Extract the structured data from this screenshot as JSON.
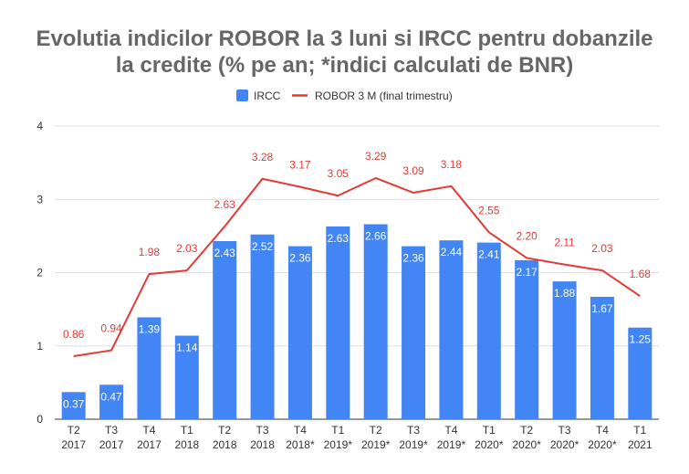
{
  "chart_data": {
    "type": "bar",
    "title_line1": "Evolutia indicilor ROBOR la 3 luni si IRCC pentru dobanzile",
    "title_line2": "la credite (% pe an; *indici calculati de BNR)",
    "categories": [
      [
        "T2",
        "2017"
      ],
      [
        "T3",
        "2017"
      ],
      [
        "T4",
        "2017"
      ],
      [
        "T1",
        "2018"
      ],
      [
        "T2",
        "2018"
      ],
      [
        "T3",
        "2018"
      ],
      [
        "T4",
        "2018*"
      ],
      [
        "T1",
        "2019*"
      ],
      [
        "T2",
        "2019*"
      ],
      [
        "T3",
        "2019*"
      ],
      [
        "T4",
        "2019*"
      ],
      [
        "T1",
        "2020*"
      ],
      [
        "T2",
        "2020*"
      ],
      [
        "T3",
        "2020*"
      ],
      [
        "T4",
        "2020*"
      ],
      [
        "T1",
        "2021"
      ]
    ],
    "series": [
      {
        "name": "IRCC",
        "kind": "bar",
        "color": "#4285f4",
        "values": [
          0.37,
          0.47,
          1.39,
          1.14,
          2.43,
          2.52,
          2.36,
          2.63,
          2.66,
          2.36,
          2.44,
          2.41,
          2.17,
          1.88,
          1.67,
          1.25
        ],
        "labels": [
          "0.37",
          "0.47",
          "1.39",
          "1.14",
          "2.43",
          "2.52",
          "2.36",
          "2.63",
          "2.66",
          "2.36",
          "2.44",
          "2.41",
          "2.17",
          "1.88",
          "1.67",
          "1.25"
        ]
      },
      {
        "name": "ROBOR 3 M (final trimestru)",
        "kind": "line",
        "color": "#e53935",
        "values": [
          0.86,
          0.94,
          1.98,
          2.03,
          2.63,
          3.28,
          3.17,
          3.05,
          3.29,
          3.09,
          3.18,
          2.55,
          2.2,
          2.11,
          2.03,
          1.68
        ],
        "labels": [
          "0.86",
          "0.94",
          "1.98",
          "2.03",
          "2.63",
          "3.28",
          "3.17",
          "3.05",
          "3.29",
          "3.09",
          "3.18",
          "2.55",
          "2.20",
          "2.11",
          "2.03",
          "1.68"
        ]
      }
    ],
    "ylim": [
      0,
      4
    ],
    "yticks": [
      "0",
      "1",
      "2",
      "3",
      "4"
    ],
    "grid": true,
    "legend_position": "top-center",
    "gridline_color": "#e0e0e0"
  }
}
